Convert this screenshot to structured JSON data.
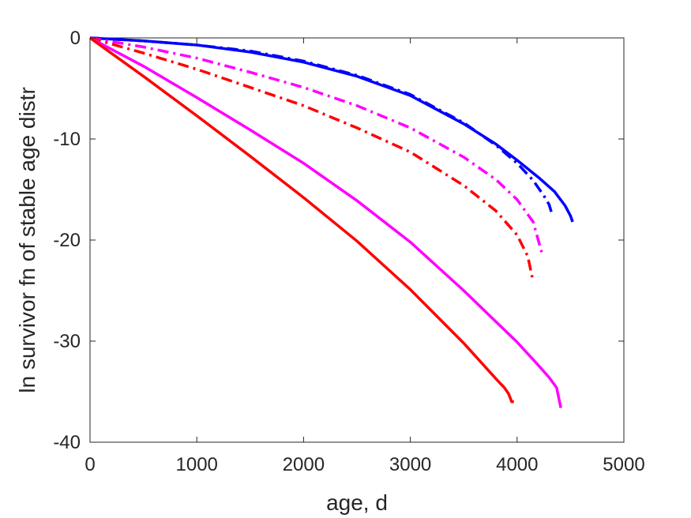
{
  "chart_data": {
    "type": "line",
    "title": "",
    "xlabel": "age, d",
    "ylabel": "ln survivor fn of stable age distr",
    "xlim": [
      0,
      5000
    ],
    "ylim": [
      -40,
      0
    ],
    "xticks": [
      0,
      1000,
      2000,
      3000,
      4000,
      5000
    ],
    "xtick_labels": [
      "0",
      "1000",
      "2000",
      "3000",
      "4000",
      "5000"
    ],
    "yticks": [
      0,
      -10,
      -20,
      -30,
      -40
    ],
    "ytick_labels": [
      "0",
      "-10",
      "-20",
      "-30",
      "-40"
    ],
    "grid": false,
    "legend": "none",
    "series": [
      {
        "color": "#0000ff",
        "style": "solid",
        "x": [
          0,
          500,
          1000,
          1500,
          2000,
          2500,
          3000,
          3500,
          3800,
          4000,
          4200,
          4350,
          4450,
          4500,
          4520
        ],
        "y": [
          0,
          -0.3,
          -0.7,
          -1.4,
          -2.4,
          -3.8,
          -5.7,
          -8.5,
          -10.5,
          -12.1,
          -13.8,
          -15.2,
          -16.6,
          -17.6,
          -18.2
        ]
      },
      {
        "color": "#0000ff",
        "style": "dashdot",
        "x": [
          0,
          500,
          1000,
          1500,
          2000,
          2500,
          3000,
          3500,
          3800,
          4000,
          4150,
          4250,
          4300,
          4320
        ],
        "y": [
          0,
          -0.3,
          -0.7,
          -1.3,
          -2.3,
          -3.7,
          -5.6,
          -8.4,
          -10.6,
          -12.4,
          -14.1,
          -15.6,
          -16.5,
          -17.2
        ]
      },
      {
        "color": "#ff00ff",
        "style": "dashdot",
        "x": [
          0,
          500,
          1000,
          1500,
          2000,
          2500,
          3000,
          3500,
          3800,
          4000,
          4150,
          4230
        ],
        "y": [
          0,
          -0.9,
          -2.0,
          -3.4,
          -4.9,
          -6.7,
          -8.9,
          -11.8,
          -14.0,
          -16.0,
          -18.2,
          -21.2
        ]
      },
      {
        "color": "#ff0000",
        "style": "dashdot",
        "x": [
          0,
          500,
          1000,
          1500,
          2000,
          2500,
          3000,
          3500,
          3800,
          4000,
          4100,
          4150
        ],
        "y": [
          0,
          -1.5,
          -3.1,
          -4.9,
          -6.7,
          -8.9,
          -11.3,
          -14.6,
          -17.1,
          -19.5,
          -21.6,
          -24.1
        ]
      },
      {
        "color": "#ff00ff",
        "style": "solid",
        "x": [
          0,
          500,
          1000,
          1500,
          2000,
          2500,
          3000,
          3500,
          4000,
          4200,
          4300,
          4370,
          4410
        ],
        "y": [
          0,
          -2.8,
          -5.9,
          -9.1,
          -12.4,
          -16.1,
          -20.2,
          -25.0,
          -30.1,
          -32.4,
          -33.6,
          -34.6,
          -36.6
        ]
      },
      {
        "color": "#ff0000",
        "style": "solid",
        "x": [
          0,
          500,
          1000,
          1500,
          2000,
          2500,
          3000,
          3500,
          3800,
          3880,
          3920,
          3950,
          3970
        ],
        "y": [
          0,
          -3.8,
          -7.7,
          -11.7,
          -15.8,
          -20.1,
          -24.9,
          -30.2,
          -33.7,
          -34.6,
          -35.2,
          -36.0,
          -36.0
        ]
      }
    ]
  }
}
